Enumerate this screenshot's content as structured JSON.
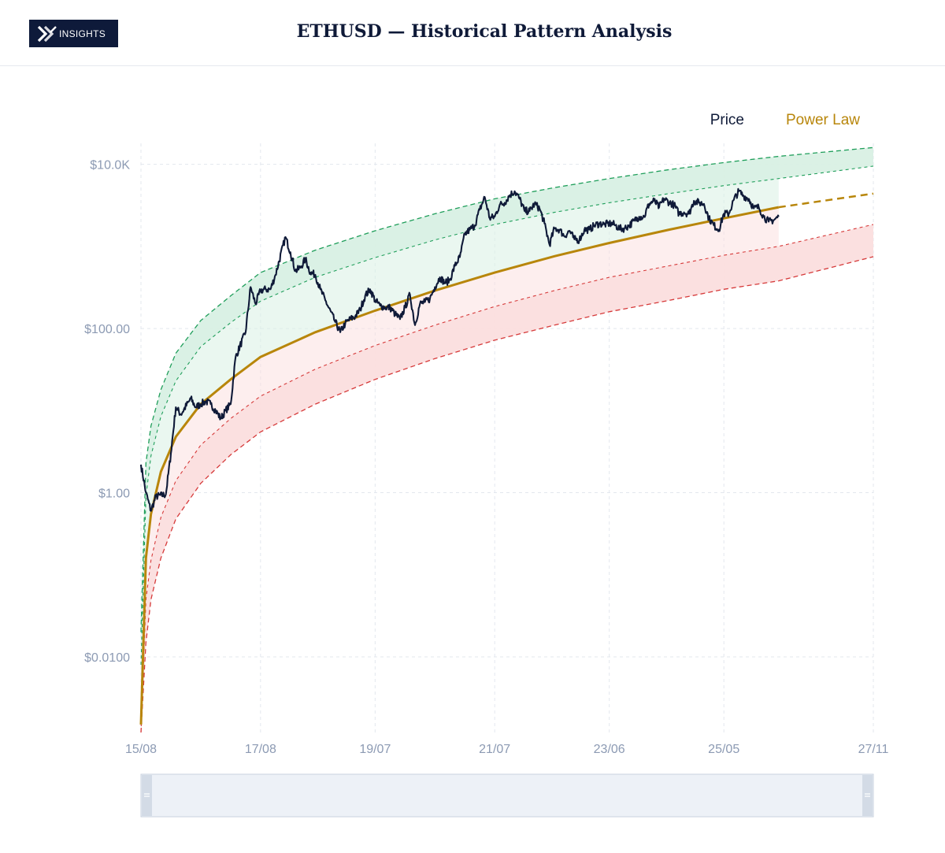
{
  "header": {
    "logo_text": "INSIGHTS",
    "title": "ETHUSD — Historical Pattern Analysis"
  },
  "colors": {
    "price": "#0f1a38",
    "power_law": "#b8860b",
    "upper_band": "#1f9e5a",
    "lower_band": "#d63a3a",
    "upper_fill": "#d9f0e4",
    "lower_fill": "#fbdede",
    "grid": "#e3e7ee",
    "tick": "#8c9ab3"
  },
  "chart_data": {
    "type": "line",
    "y_scale": "log",
    "legend_position": "top-right",
    "grid": true,
    "legend": [
      {
        "name": "Price",
        "color": "#0f1a38"
      },
      {
        "name": "Power Law",
        "color": "#b8860b"
      }
    ],
    "x_range": [
      "2015-08",
      "2027-11"
    ],
    "x_ticks": [
      {
        "date": "2015-08",
        "label": "15/08"
      },
      {
        "date": "2017-08",
        "label": "17/08"
      },
      {
        "date": "2019-07",
        "label": "19/07"
      },
      {
        "date": "2021-07",
        "label": "21/07"
      },
      {
        "date": "2023-06",
        "label": "23/06"
      },
      {
        "date": "2025-05",
        "label": "25/05"
      },
      {
        "date": "2027-11",
        "label": "27/11"
      }
    ],
    "y_range": [
      0.0012,
      18000
    ],
    "y_ticks": [
      {
        "value": 0.01,
        "label": "$0.0100"
      },
      {
        "value": 1,
        "label": "$1.00"
      },
      {
        "value": 100,
        "label": "$100.00"
      },
      {
        "value": 10000,
        "label": "$10.0K"
      }
    ],
    "series": [
      {
        "name": "Price",
        "points": [
          [
            "2015-08",
            2.2
          ],
          [
            "2015-09",
            1.0
          ],
          [
            "2015-10",
            0.6
          ],
          [
            "2015-11",
            0.9
          ],
          [
            "2016-01",
            0.95
          ],
          [
            "2016-02",
            3.0
          ],
          [
            "2016-03",
            11
          ],
          [
            "2016-04",
            9
          ],
          [
            "2016-06",
            14
          ],
          [
            "2016-07",
            11
          ],
          [
            "2016-08",
            12
          ],
          [
            "2016-09",
            13
          ],
          [
            "2016-10",
            12
          ],
          [
            "2016-11",
            10
          ],
          [
            "2016-12",
            8
          ],
          [
            "2017-01",
            10
          ],
          [
            "2017-02",
            12
          ],
          [
            "2017-03",
            45
          ],
          [
            "2017-05",
            90
          ],
          [
            "2017-06",
            320
          ],
          [
            "2017-07",
            200
          ],
          [
            "2017-08",
            290
          ],
          [
            "2017-09",
            300
          ],
          [
            "2017-10",
            300
          ],
          [
            "2017-11",
            450
          ],
          [
            "2018-01",
            1300
          ],
          [
            "2018-02",
            850
          ],
          [
            "2018-03",
            500
          ],
          [
            "2018-04",
            550
          ],
          [
            "2018-05",
            700
          ],
          [
            "2018-06",
            480
          ],
          [
            "2018-07",
            450
          ],
          [
            "2018-08",
            300
          ],
          [
            "2018-09",
            220
          ],
          [
            "2018-11",
            120
          ],
          [
            "2018-12",
            90
          ],
          [
            "2019-01",
            115
          ],
          [
            "2019-02",
            130
          ],
          [
            "2019-03",
            140
          ],
          [
            "2019-04",
            170
          ],
          [
            "2019-05",
            250
          ],
          [
            "2019-06",
            300
          ],
          [
            "2019-07",
            220
          ],
          [
            "2019-08",
            190
          ],
          [
            "2019-09",
            180
          ],
          [
            "2019-10",
            180
          ],
          [
            "2019-11",
            150
          ],
          [
            "2019-12",
            130
          ],
          [
            "2020-01",
            180
          ],
          [
            "2020-02",
            260
          ],
          [
            "2020-03",
            110
          ],
          [
            "2020-04",
            200
          ],
          [
            "2020-05",
            210
          ],
          [
            "2020-06",
            230
          ],
          [
            "2020-07",
            320
          ],
          [
            "2020-08",
            420
          ],
          [
            "2020-09",
            360
          ],
          [
            "2020-10",
            390
          ],
          [
            "2020-11",
            580
          ],
          [
            "2020-12",
            740
          ],
          [
            "2021-01",
            1400
          ],
          [
            "2021-02",
            1600
          ],
          [
            "2021-03",
            1800
          ],
          [
            "2021-04",
            2800
          ],
          [
            "2021-05",
            4000
          ],
          [
            "2021-06",
            2200
          ],
          [
            "2021-07",
            2300
          ],
          [
            "2021-08",
            3200
          ],
          [
            "2021-09",
            3400
          ],
          [
            "2021-10",
            4200
          ],
          [
            "2021-11",
            4700
          ],
          [
            "2021-12",
            3800
          ],
          [
            "2022-01",
            2700
          ],
          [
            "2022-02",
            2700
          ],
          [
            "2022-03",
            3300
          ],
          [
            "2022-04",
            2900
          ],
          [
            "2022-05",
            1900
          ],
          [
            "2022-06",
            1050
          ],
          [
            "2022-07",
            1650
          ],
          [
            "2022-08",
            1600
          ],
          [
            "2022-09",
            1330
          ],
          [
            "2022-10",
            1550
          ],
          [
            "2022-11",
            1220
          ],
          [
            "2022-12",
            1200
          ],
          [
            "2023-01",
            1600
          ],
          [
            "2023-02",
            1600
          ],
          [
            "2023-03",
            1800
          ],
          [
            "2023-04",
            1900
          ],
          [
            "2023-05",
            1850
          ],
          [
            "2023-06",
            1900
          ],
          [
            "2023-07",
            1850
          ],
          [
            "2023-08",
            1650
          ],
          [
            "2023-09",
            1650
          ],
          [
            "2023-10",
            1800
          ],
          [
            "2023-11",
            2050
          ],
          [
            "2023-12",
            2300
          ],
          [
            "2024-01",
            2300
          ],
          [
            "2024-02",
            3300
          ],
          [
            "2024-03",
            3600
          ],
          [
            "2024-04",
            3000
          ],
          [
            "2024-05",
            3800
          ],
          [
            "2024-06",
            3450
          ],
          [
            "2024-07",
            3200
          ],
          [
            "2024-08",
            2500
          ],
          [
            "2024-09",
            2600
          ],
          [
            "2024-10",
            2500
          ],
          [
            "2024-11",
            3600
          ],
          [
            "2024-12",
            3400
          ],
          [
            "2025-01",
            3300
          ],
          [
            "2025-02",
            2200
          ],
          [
            "2025-03",
            1800
          ],
          [
            "2025-04",
            1600
          ],
          [
            "2025-05",
            2500
          ],
          [
            "2025-06",
            2500
          ],
          [
            "2025-07",
            3700
          ],
          [
            "2025-08",
            4700
          ],
          [
            "2025-09",
            4100
          ],
          [
            "2025-10",
            3800
          ],
          [
            "2025-11",
            2900
          ],
          [
            "2025-12",
            3000
          ],
          [
            "2026-01",
            2300
          ],
          [
            "2026-02",
            2000
          ],
          [
            "2026-03",
            2100
          ],
          [
            "2026-04",
            2300
          ]
        ]
      },
      {
        "name": "Power Law",
        "points": [
          [
            "2015-08",
            0.0015
          ],
          [
            "2015-09",
            0.16
          ],
          [
            "2015-10",
            0.55
          ],
          [
            "2015-12",
            1.8
          ],
          [
            "2016-03",
            4.8
          ],
          [
            "2016-08",
            12
          ],
          [
            "2017-02",
            24
          ],
          [
            "2017-08",
            45
          ],
          [
            "2018-07",
            90
          ],
          [
            "2019-07",
            165
          ],
          [
            "2020-07",
            290
          ],
          [
            "2021-07",
            480
          ],
          [
            "2022-07",
            760
          ],
          [
            "2023-06",
            1100
          ],
          [
            "2024-06",
            1600
          ],
          [
            "2025-05",
            2200
          ],
          [
            "2026-04",
            3000
          ]
        ],
        "projection": [
          [
            "2026-04",
            3000
          ],
          [
            "2027-11",
            4400
          ]
        ]
      },
      {
        "name": "Upper band outer",
        "points": [
          [
            "2015-08",
            0.02
          ],
          [
            "2015-09",
            2.3
          ],
          [
            "2015-10",
            6.5
          ],
          [
            "2015-12",
            18
          ],
          [
            "2016-03",
            50
          ],
          [
            "2016-08",
            125
          ],
          [
            "2017-02",
            250
          ],
          [
            "2017-08",
            480
          ],
          [
            "2018-07",
            900
          ],
          [
            "2019-07",
            1550
          ],
          [
            "2020-07",
            2500
          ],
          [
            "2021-07",
            3800
          ],
          [
            "2022-07",
            5200
          ],
          [
            "2023-06",
            6700
          ],
          [
            "2024-06",
            8600
          ],
          [
            "2025-05",
            10500
          ],
          [
            "2026-04",
            12500
          ],
          [
            "2027-11",
            16000
          ]
        ]
      },
      {
        "name": "Upper band inner",
        "points": [
          [
            "2015-08",
            0.008
          ],
          [
            "2015-09",
            0.9
          ],
          [
            "2015-10",
            2.8
          ],
          [
            "2015-12",
            8.5
          ],
          [
            "2016-03",
            23
          ],
          [
            "2016-08",
            60
          ],
          [
            "2017-02",
            118
          ],
          [
            "2017-08",
            215
          ],
          [
            "2018-07",
            420
          ],
          [
            "2019-07",
            730
          ],
          [
            "2020-07",
            1200
          ],
          [
            "2021-07",
            1850
          ],
          [
            "2022-07",
            2600
          ],
          [
            "2023-06",
            3400
          ],
          [
            "2024-06",
            4400
          ],
          [
            "2025-05",
            5500
          ],
          [
            "2026-04",
            6700
          ],
          [
            "2027-11",
            9500
          ]
        ]
      },
      {
        "name": "Lower band inner",
        "points": [
          [
            "2015-08",
            0.0012
          ],
          [
            "2015-09",
            0.05
          ],
          [
            "2015-10",
            0.15
          ],
          [
            "2015-12",
            0.5
          ],
          [
            "2016-03",
            1.4
          ],
          [
            "2016-08",
            3.8
          ],
          [
            "2017-02",
            8
          ],
          [
            "2017-08",
            15
          ],
          [
            "2018-07",
            32
          ],
          [
            "2019-07",
            62
          ],
          [
            "2020-07",
            110
          ],
          [
            "2021-07",
            185
          ],
          [
            "2022-07",
            290
          ],
          [
            "2023-06",
            420
          ],
          [
            "2024-06",
            580
          ],
          [
            "2025-05",
            780
          ],
          [
            "2026-04",
            1000
          ],
          [
            "2027-11",
            1850
          ]
        ]
      },
      {
        "name": "Lower band outer",
        "points": [
          [
            "2015-08",
            0.0012
          ],
          [
            "2015-09",
            0.015
          ],
          [
            "2015-10",
            0.05
          ],
          [
            "2015-12",
            0.16
          ],
          [
            "2016-03",
            0.48
          ],
          [
            "2016-08",
            1.3
          ],
          [
            "2017-02",
            2.9
          ],
          [
            "2017-08",
            5.5
          ],
          [
            "2018-07",
            12
          ],
          [
            "2019-07",
            24
          ],
          [
            "2020-07",
            43
          ],
          [
            "2021-07",
            72
          ],
          [
            "2022-07",
            110
          ],
          [
            "2023-06",
            160
          ],
          [
            "2024-06",
            220
          ],
          [
            "2025-05",
            300
          ],
          [
            "2026-04",
            380
          ],
          [
            "2027-11",
            750
          ]
        ]
      }
    ]
  }
}
